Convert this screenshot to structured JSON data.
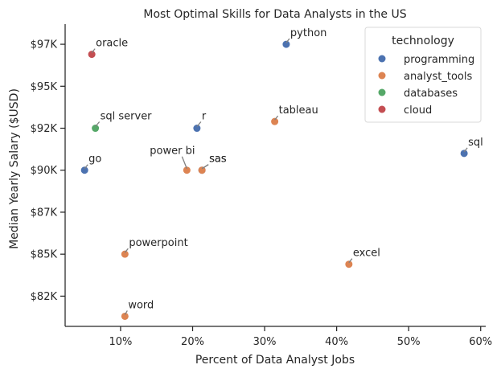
{
  "chart_data": {
    "type": "scatter",
    "title": "Most Optimal Skills for Data Analysts in the US",
    "xlabel": "Percent of Data Analyst Jobs",
    "ylabel": "Median Yearly Salary ($USD)",
    "xlim": [
      2.3,
      60.7
    ],
    "ylim": [
      80700,
      98700
    ],
    "x_ticks": [
      {
        "value": 10,
        "label": "10%"
      },
      {
        "value": 20,
        "label": "20%"
      },
      {
        "value": 30,
        "label": "30%"
      },
      {
        "value": 40,
        "label": "40%"
      },
      {
        "value": 50,
        "label": "50%"
      },
      {
        "value": 60,
        "label": "60%"
      }
    ],
    "y_ticks": [
      {
        "value": 82500,
        "label": "$82K"
      },
      {
        "value": 85000,
        "label": "$85K"
      },
      {
        "value": 87500,
        "label": "$87K"
      },
      {
        "value": 90000,
        "label": "$90K"
      },
      {
        "value": 92500,
        "label": "$92K"
      },
      {
        "value": 95000,
        "label": "$95K"
      },
      {
        "value": 97500,
        "label": "$97K"
      }
    ],
    "legend": {
      "title": "technology",
      "placement": "top-right",
      "entries": [
        {
          "name": "programming",
          "color": "#4C72B0"
        },
        {
          "name": "analyst_tools",
          "color": "#DD8452"
        },
        {
          "name": "databases",
          "color": "#55A868"
        },
        {
          "name": "cloud",
          "color": "#C44E52"
        }
      ]
    },
    "points": [
      {
        "label": "python",
        "x": 33.0,
        "y": 97500,
        "tech": "programming"
      },
      {
        "label": "oracle",
        "x": 6.0,
        "y": 96900,
        "tech": "cloud"
      },
      {
        "label": "tableau",
        "x": 31.4,
        "y": 92900,
        "tech": "analyst_tools"
      },
      {
        "label": "sql server",
        "x": 6.5,
        "y": 92500,
        "tech": "databases"
      },
      {
        "label": "r",
        "x": 20.6,
        "y": 92500,
        "tech": "programming"
      },
      {
        "label": "sql",
        "x": 57.7,
        "y": 91000,
        "tech": "programming"
      },
      {
        "label": "go",
        "x": 5.0,
        "y": 90000,
        "tech": "programming"
      },
      {
        "label": "power bi",
        "x": 19.2,
        "y": 90000,
        "tech": "analyst_tools"
      },
      {
        "label": "sas",
        "x": 21.3,
        "y": 90000,
        "tech": "programming"
      },
      {
        "label": "sas",
        "x": 21.3,
        "y": 90000,
        "tech": "analyst_tools"
      },
      {
        "label": "powerpoint",
        "x": 10.6,
        "y": 85000,
        "tech": "analyst_tools"
      },
      {
        "label": "excel",
        "x": 41.7,
        "y": 84400,
        "tech": "analyst_tools"
      },
      {
        "label": "word",
        "x": 10.6,
        "y": 81300,
        "tech": "analyst_tools"
      }
    ]
  }
}
